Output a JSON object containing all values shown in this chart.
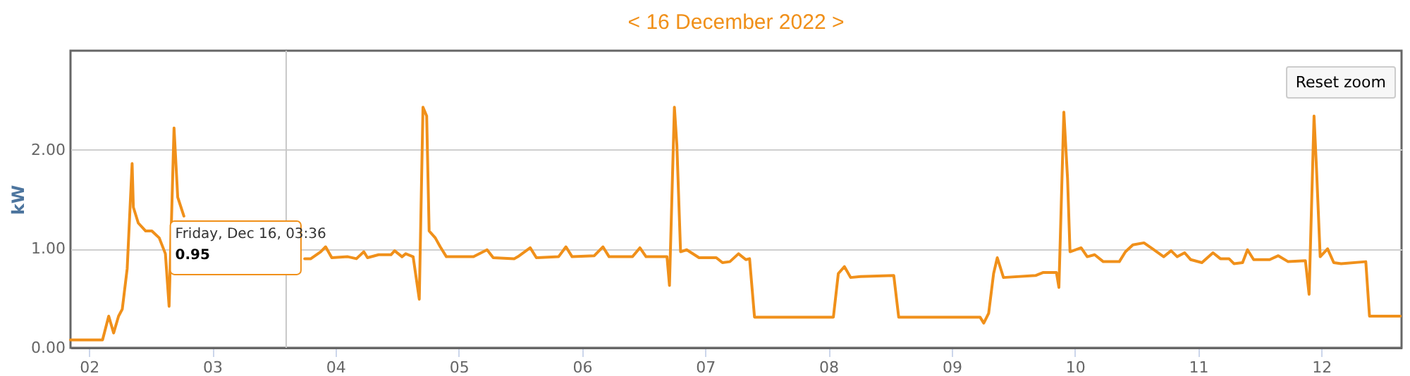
{
  "chart_data": {
    "type": "line",
    "title": "<  16 December 2022  >",
    "ylabel": "kW",
    "x": [
      1.85,
      2.11,
      2.16,
      2.2,
      2.24,
      2.27,
      2.31,
      2.35,
      2.36,
      2.4,
      2.46,
      2.51,
      2.57,
      2.62,
      2.65,
      2.69,
      2.72,
      2.77,
      3.2,
      3.75,
      3.8,
      3.88,
      3.92,
      3.97,
      4.1,
      4.17,
      4.23,
      4.26,
      4.35,
      4.45,
      4.48,
      4.54,
      4.57,
      4.63,
      4.68,
      4.71,
      4.74,
      4.76,
      4.81,
      4.85,
      4.9,
      5.12,
      5.23,
      5.28,
      5.45,
      5.48,
      5.58,
      5.63,
      5.81,
      5.87,
      5.92,
      6.1,
      6.17,
      6.22,
      6.41,
      6.47,
      6.52,
      6.69,
      6.71,
      6.75,
      6.77,
      6.8,
      6.85,
      6.95,
      7.09,
      7.14,
      7.2,
      7.27,
      7.33,
      7.36,
      7.4,
      8.04,
      8.08,
      8.13,
      8.18,
      8.26,
      8.53,
      8.57,
      9.23,
      9.26,
      9.3,
      9.34,
      9.37,
      9.42,
      9.68,
      9.74,
      9.85,
      9.87,
      9.91,
      9.94,
      9.96,
      10.05,
      10.1,
      10.16,
      10.23,
      10.36,
      10.41,
      10.47,
      10.56,
      10.63,
      10.72,
      10.78,
      10.83,
      10.89,
      10.94,
      11.03,
      11.12,
      11.18,
      11.25,
      11.29,
      11.36,
      11.4,
      11.45,
      11.58,
      11.65,
      11.73,
      11.87,
      11.9,
      11.94,
      11.96,
      11.99,
      12.05,
      12.1,
      12.16,
      12.36,
      12.39,
      12.64
    ],
    "series": [
      {
        "color": "#f0901a",
        "values": [
          0.08,
          0.08,
          0.32,
          0.15,
          0.32,
          0.39,
          0.8,
          1.86,
          1.42,
          1.26,
          1.18,
          1.18,
          1.11,
          0.95,
          0.42,
          2.22,
          1.52,
          1.33,
          null,
          0.9,
          0.9,
          0.97,
          1.02,
          0.91,
          0.92,
          0.9,
          0.97,
          0.91,
          0.94,
          0.94,
          0.98,
          0.92,
          0.95,
          0.92,
          0.49,
          2.43,
          2.34,
          1.18,
          1.11,
          1.02,
          0.92,
          0.92,
          0.99,
          0.91,
          0.9,
          0.92,
          1.01,
          0.91,
          0.92,
          1.02,
          0.92,
          0.93,
          1.02,
          0.92,
          0.92,
          1.01,
          0.92,
          0.92,
          0.63,
          2.43,
          2.05,
          0.97,
          0.99,
          0.91,
          0.91,
          0.86,
          0.87,
          0.95,
          0.89,
          0.9,
          0.31,
          0.31,
          0.75,
          0.82,
          0.71,
          0.72,
          0.73,
          0.31,
          0.31,
          0.25,
          0.35,
          0.75,
          0.91,
          0.71,
          0.73,
          0.76,
          0.76,
          0.61,
          2.38,
          1.71,
          0.97,
          1.01,
          0.92,
          0.94,
          0.87,
          0.87,
          0.97,
          1.04,
          1.06,
          1.0,
          0.92,
          0.98,
          0.92,
          0.96,
          0.89,
          0.86,
          0.96,
          0.9,
          0.9,
          0.85,
          0.86,
          0.99,
          0.89,
          0.89,
          0.93,
          0.87,
          0.88,
          0.54,
          2.34,
          1.81,
          0.92,
          1.0,
          0.86,
          0.85,
          0.87,
          0.32,
          0.32
        ]
      }
    ],
    "xlim": [
      1.85,
      12.65
    ],
    "xticks": [
      {
        "value": 2,
        "label": "02"
      },
      {
        "value": 3,
        "label": "03"
      },
      {
        "value": 4,
        "label": "04"
      },
      {
        "value": 5,
        "label": "05"
      },
      {
        "value": 6,
        "label": "06"
      },
      {
        "value": 7,
        "label": "07"
      },
      {
        "value": 8,
        "label": "08"
      },
      {
        "value": 9,
        "label": "09"
      },
      {
        "value": 10,
        "label": "10"
      },
      {
        "value": 11,
        "label": "11"
      },
      {
        "value": 12,
        "label": "12"
      }
    ],
    "ylim": [
      0,
      3
    ],
    "yticks": [
      {
        "value": 0,
        "label": "0.00"
      },
      {
        "value": 1,
        "label": "1.00"
      },
      {
        "value": 2,
        "label": "2.00"
      }
    ],
    "grid": "y",
    "marker": "none",
    "line_style": "solid",
    "ref_lines": [
      {
        "axis": "x",
        "value": 3.6,
        "color": "#c8c8c8"
      }
    ],
    "annotations": [
      {
        "text": "Friday, Dec 16, 03:36",
        "x": 3.6,
        "y": 0.95
      },
      "0.95",
      "Reset zoom"
    ]
  }
}
